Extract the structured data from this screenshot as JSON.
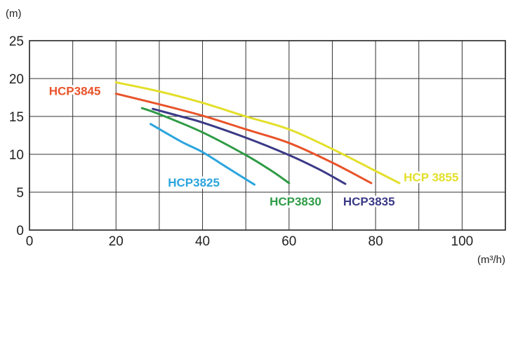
{
  "chart_data": {
    "type": "line",
    "title": "",
    "ylabel": "(m)",
    "xlabel": "(m³/h)",
    "xlim": [
      0,
      110
    ],
    "ylim": [
      0,
      25
    ],
    "xticks": [
      "0",
      "20",
      "40",
      "60",
      "80",
      "100"
    ],
    "xtick_values": [
      0,
      20,
      40,
      60,
      80,
      100
    ],
    "yticks": [
      "0",
      "5",
      "10",
      "15",
      "20",
      "25"
    ],
    "ytick_values": [
      0,
      5,
      10,
      15,
      20,
      25
    ],
    "grid": true,
    "grid_x_step": 10,
    "grid_y_step": 5,
    "series": [
      {
        "name": "HCP 3855",
        "color": "#e3df2a",
        "x": [
          20,
          30,
          40,
          50,
          60,
          70,
          80,
          85.5
        ],
        "y": [
          19.5,
          18.3,
          16.8,
          15.0,
          13.3,
          10.7,
          7.8,
          6.2
        ]
      },
      {
        "name": "HCP3845",
        "color": "#e8532a",
        "x": [
          20,
          30,
          40,
          50,
          60,
          70,
          79
        ],
        "y": [
          18.0,
          16.6,
          15.1,
          13.3,
          11.5,
          8.9,
          6.2
        ]
      },
      {
        "name": "HCP3835",
        "color": "#3b3a86",
        "x": [
          28.5,
          35,
          40,
          50,
          60,
          67,
          73
        ],
        "y": [
          16.0,
          15.0,
          14.2,
          12.2,
          9.9,
          8.0,
          6.1
        ]
      },
      {
        "name": "HCP3830",
        "color": "#2e9b45",
        "x": [
          26,
          30,
          40,
          50,
          56,
          60
        ],
        "y": [
          16.1,
          15.3,
          12.9,
          9.9,
          7.8,
          6.2
        ]
      },
      {
        "name": "HCP3825",
        "color": "#2ba5dd",
        "x": [
          28,
          35,
          40,
          45,
          52
        ],
        "y": [
          14.0,
          11.7,
          10.3,
          8.5,
          6.0
        ]
      }
    ],
    "labels": [
      {
        "text": "HCP3845",
        "series": 1,
        "at": [
          4.5,
          18.4
        ],
        "anchor": "start"
      },
      {
        "text": "HCP 3855",
        "series": 0,
        "at": [
          86.5,
          7.0
        ],
        "anchor": "start"
      },
      {
        "text": "HCP3825",
        "series": 4,
        "at": [
          32,
          6.3
        ],
        "anchor": "start"
      },
      {
        "text": "HCP3830",
        "series": 3,
        "at": [
          55.5,
          3.8
        ],
        "anchor": "start"
      },
      {
        "text": "HCP3835",
        "series": 2,
        "at": [
          72.5,
          3.8
        ],
        "anchor": "start"
      }
    ]
  }
}
